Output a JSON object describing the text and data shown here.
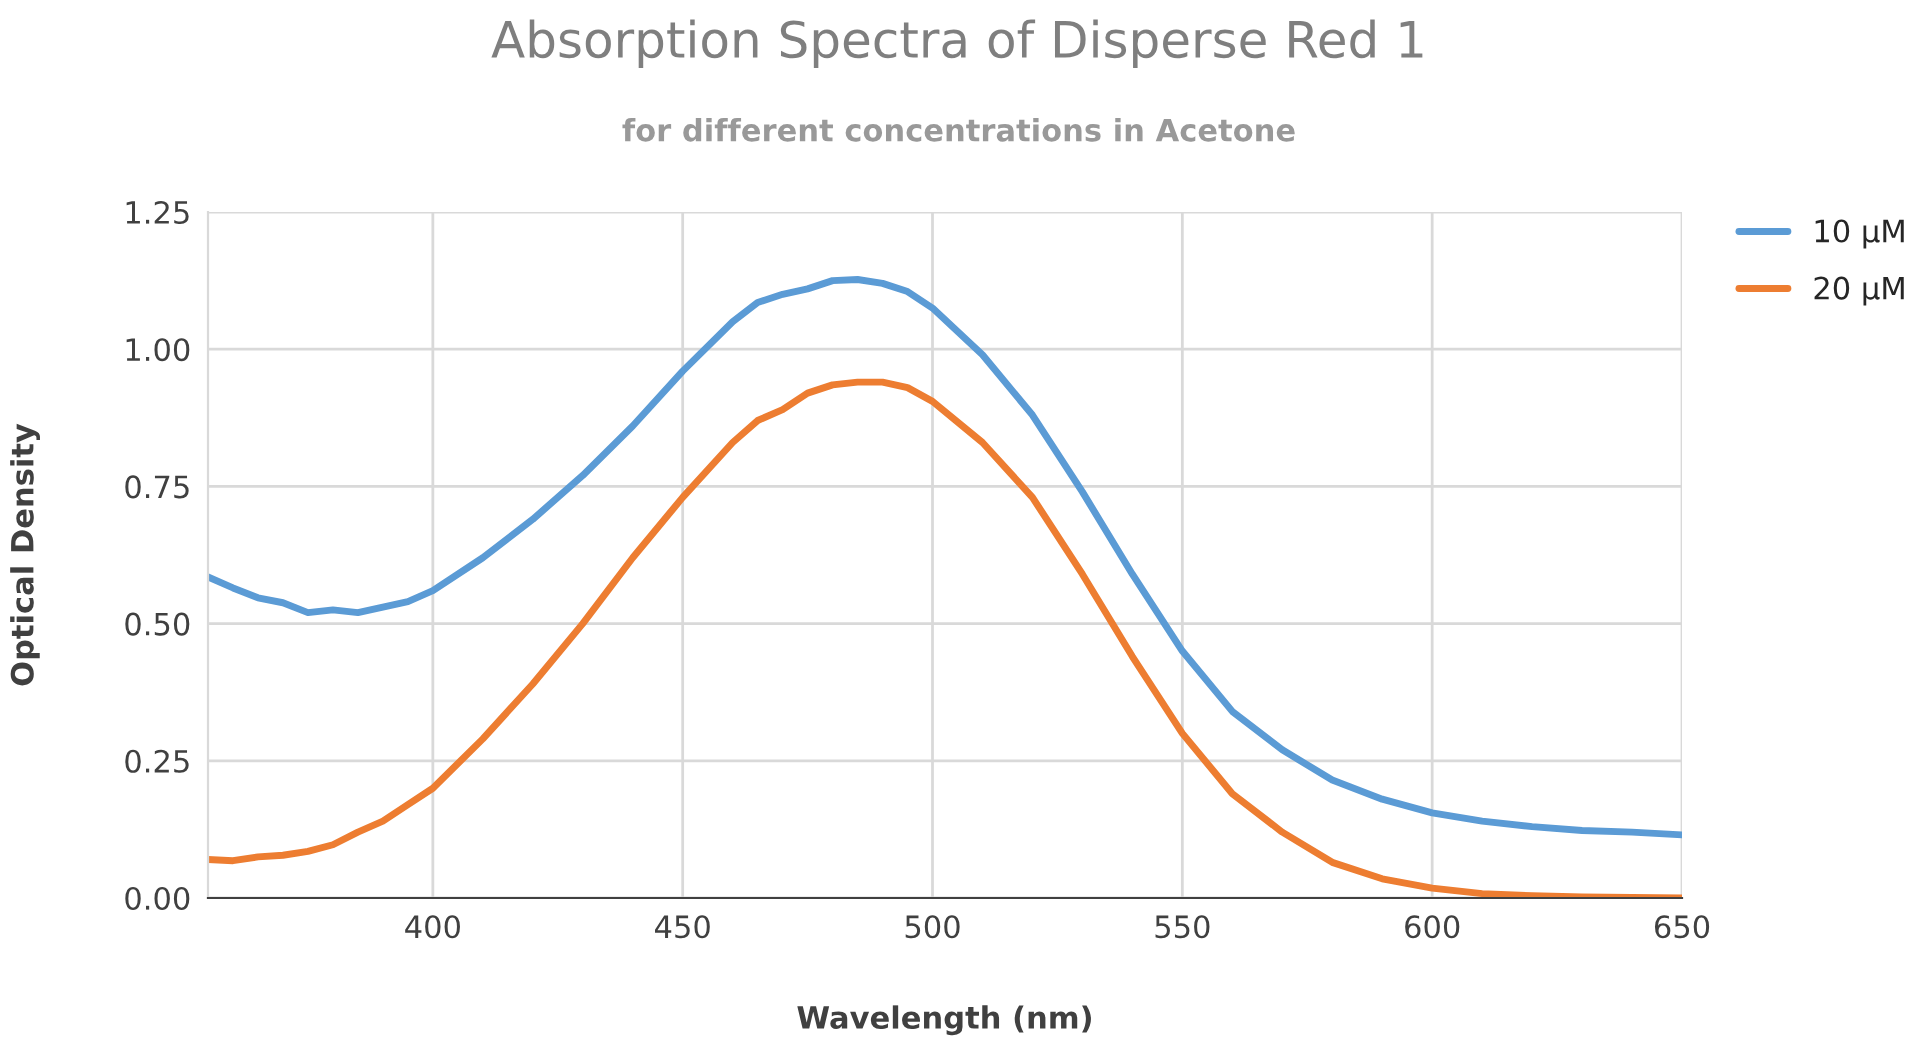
{
  "chart_data": {
    "type": "line",
    "title": "Absorption Spectra of Disperse Red 1",
    "subtitle": "for different concentrations in Acetone",
    "xlabel": "Wavelength (nm)",
    "ylabel": "Optical Density",
    "x": [
      355,
      360,
      365,
      370,
      375,
      380,
      385,
      390,
      395,
      400,
      410,
      420,
      430,
      440,
      450,
      460,
      465,
      470,
      475,
      480,
      485,
      490,
      495,
      500,
      510,
      520,
      530,
      540,
      550,
      560,
      570,
      580,
      590,
      600,
      610,
      620,
      630,
      640,
      650
    ],
    "series": [
      {
        "name": "10 µM",
        "color": "#5b9bd5",
        "values": [
          0.585,
          0.565,
          0.547,
          0.538,
          0.52,
          0.525,
          0.52,
          0.53,
          0.54,
          0.56,
          0.62,
          0.69,
          0.77,
          0.86,
          0.96,
          1.05,
          1.085,
          1.1,
          1.11,
          1.125,
          1.127,
          1.12,
          1.105,
          1.075,
          0.99,
          0.88,
          0.74,
          0.59,
          0.45,
          0.34,
          0.27,
          0.215,
          0.18,
          0.155,
          0.14,
          0.13,
          0.123,
          0.12,
          0.115
        ]
      },
      {
        "name": "20 µM",
        "color": "#ed7d31",
        "values": [
          0.07,
          0.068,
          0.075,
          0.078,
          0.085,
          0.097,
          0.12,
          0.14,
          0.17,
          0.2,
          0.29,
          0.39,
          0.5,
          0.62,
          0.73,
          0.83,
          0.87,
          0.89,
          0.92,
          0.935,
          0.94,
          0.94,
          0.93,
          0.905,
          0.83,
          0.73,
          0.59,
          0.44,
          0.3,
          0.19,
          0.12,
          0.065,
          0.035,
          0.018,
          0.008,
          0.004,
          0.002,
          0.001,
          0.0
        ]
      }
    ],
    "xlim": [
      355,
      650
    ],
    "xticks": [
      400,
      450,
      500,
      550,
      600,
      650
    ],
    "ylim": [
      0,
      1.25
    ],
    "yticks": [
      {
        "value": 0,
        "label": "0.00"
      },
      {
        "value": 0.25,
        "label": "0.25"
      },
      {
        "value": 0.5,
        "label": "0.50"
      },
      {
        "value": 0.75,
        "label": "0.75"
      },
      {
        "value": 1.0,
        "label": "1.00"
      },
      {
        "value": 1.25,
        "label": "1.25"
      }
    ],
    "grid": true,
    "legend": "top right",
    "marker": "none",
    "line_style": "solid"
  }
}
